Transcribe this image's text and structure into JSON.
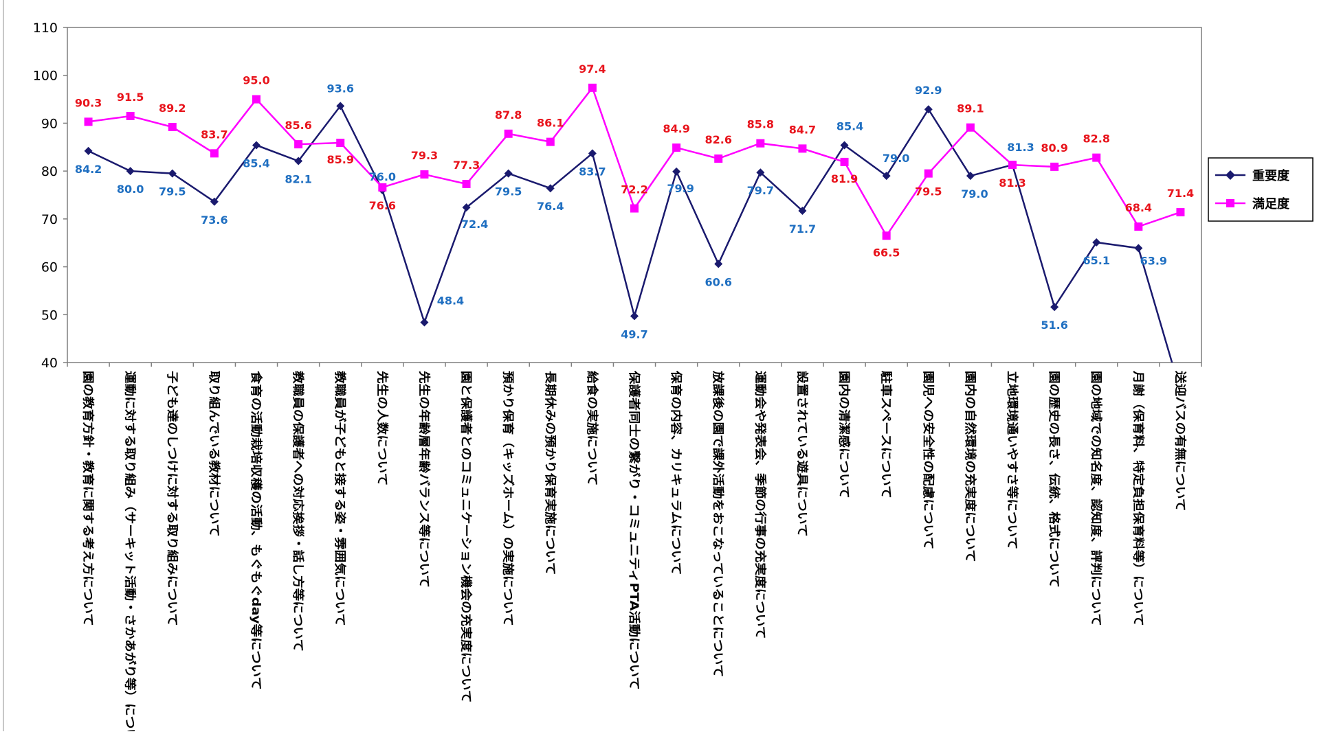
{
  "chart_data": {
    "type": "line",
    "ylim": [
      40,
      110
    ],
    "yticks": [
      "110",
      "100",
      "90",
      "80",
      "70",
      "60",
      "50",
      "40"
    ],
    "grid": false,
    "legend_placement": "right",
    "categories": [
      "園の教育方針・教育に関する考え方について",
      "運動に対する取り組み（サーキット活動・さかあがり等）について",
      "子ども達のしつけに対する取り組みについて",
      "取り組んでいる教材について",
      "食育の活動栽培収穫の活動、もぐもぐday等について",
      "教職員の保護者への対応挨拶・話し方等について",
      "教職員が子どもと接する姿・雰囲気について",
      "先生の人数について",
      "先生の年齢層年齢バランス等について",
      "園と保護者とのコミュニケーション機会の充実度について",
      "預かり保育（キッズホーム）の実施について",
      "長期休みの預かり保育実施について",
      "給食の実施について",
      "保護者同士の繋がり・コミュニティPTA活動について",
      "保育の内容、カリキュラムについて",
      "放課後の園で課外活動をおこなっていることについて",
      "運動会や発表会、季節の行事の充実度について",
      "設置されている遊具について",
      "園内の清潔感について",
      "駐車スペースについて",
      "園児への安全性の配慮について",
      "園内の自然環境の充実度について",
      "立地環境通いやすさ等について",
      "園の歴史の長さ、伝統、格式について",
      "園の地域での知名度、認知度、評判について",
      "月謝（保育料、特定負担保育料等）について",
      "送迎バスの有無について"
    ],
    "series": [
      {
        "name": "重要度",
        "color": "#1A1A6E",
        "marker": "diamond",
        "values": [
          84.2,
          80.0,
          79.5,
          73.6,
          85.4,
          82.1,
          93.6,
          76.0,
          48.4,
          72.4,
          79.5,
          76.4,
          83.7,
          49.7,
          79.9,
          60.6,
          79.7,
          71.7,
          85.4,
          79.0,
          92.9,
          79.0,
          81.3,
          51.6,
          65.1,
          63.9,
          34.0
        ],
        "labels": [
          "84.2",
          "80.0",
          "79.5",
          "73.6",
          "85.4",
          "82.1",
          "93.6",
          "76.0",
          "48.4",
          "72.4",
          "79.5",
          "76.4",
          "83.7",
          "49.7",
          "79.9",
          "60.6",
          "79.7",
          "71.7",
          "85.4",
          "79.0",
          "92.9",
          "79.0",
          "81.3",
          "51.6",
          "65.1",
          "63.9",
          null
        ],
        "label_color": "#1F6FC1"
      },
      {
        "name": "満足度",
        "color": "#FF00FF",
        "marker": "square",
        "values": [
          90.3,
          91.5,
          89.2,
          83.7,
          95.0,
          85.6,
          85.9,
          76.6,
          79.3,
          77.3,
          87.8,
          86.1,
          97.4,
          72.2,
          84.9,
          82.6,
          85.8,
          84.7,
          81.9,
          66.5,
          79.5,
          89.1,
          81.3,
          80.9,
          82.8,
          68.4,
          71.4
        ],
        "labels": [
          "90.3",
          "91.5",
          "89.2",
          "83.7",
          "95.0",
          "85.6",
          "85.9",
          "76.6",
          "79.3",
          "77.3",
          "87.8",
          "86.1",
          "97.4",
          "72.2",
          "84.9",
          "82.6",
          "85.8",
          "84.7",
          "81.9",
          "66.5",
          "79.5",
          "89.1",
          "81.3",
          "80.9",
          "82.8",
          "68.4",
          "71.4"
        ],
        "label_color": "#E8141C"
      }
    ]
  }
}
